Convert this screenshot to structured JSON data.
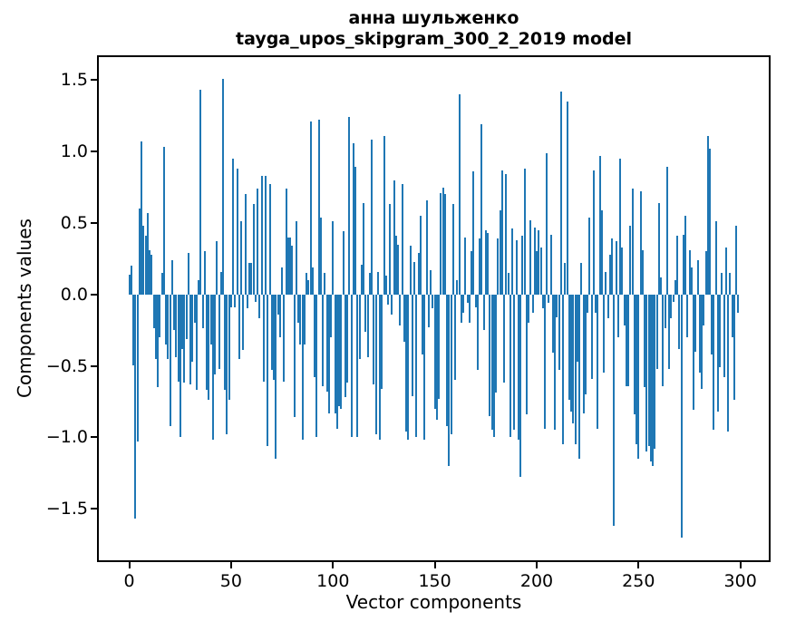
{
  "figure": {
    "background": "#ffffff"
  },
  "chart_data": {
    "type": "bar",
    "title": "анна шульженко",
    "subtitle": "tayga_upos_skipgram_300_2_2019 model",
    "xlabel": "Vector components",
    "ylabel": "Components values",
    "bar_color": "#1f77b4",
    "axis_color": "#000000",
    "grid": false,
    "legend_position": "none",
    "n_components": 300,
    "x_ticks": [
      0,
      50,
      100,
      150,
      200,
      250,
      300
    ],
    "x_tick_labels": [
      "0",
      "50",
      "100",
      "150",
      "200",
      "250",
      "300"
    ],
    "y_ticks": [
      1.5,
      1.0,
      0.5,
      0.0,
      -0.5,
      -1.0,
      -1.5
    ],
    "y_tick_labels": [
      "1.5",
      "1.0",
      "0.5",
      "0.0",
      "−0.5",
      "−1.0",
      "−1.5"
    ],
    "xlim": [
      -14.95,
      313.95
    ],
    "ylim": [
      -1.86,
      1.66
    ],
    "bar_width_data_units": 0.8,
    "values": [
      0.14,
      0.2,
      -0.5,
      -1.57,
      -1.03,
      0.6,
      1.07,
      0.48,
      0.41,
      0.57,
      0.31,
      0.28,
      -0.24,
      -0.45,
      -0.65,
      -0.3,
      0.15,
      1.03,
      -0.35,
      -0.45,
      -0.92,
      0.24,
      -0.25,
      -0.44,
      -0.61,
      -1.0,
      -0.38,
      -0.62,
      -0.31,
      0.29,
      -0.63,
      -0.47,
      -0.2,
      -0.67,
      0.1,
      1.43,
      -0.24,
      0.3,
      -0.67,
      -0.74,
      -0.35,
      -1.02,
      -0.56,
      0.37,
      -0.52,
      0.16,
      1.51,
      -0.67,
      -0.98,
      -0.74,
      -0.09,
      0.95,
      -0.09,
      0.88,
      -0.45,
      0.51,
      -0.39,
      0.7,
      -0.1,
      0.22,
      0.22,
      0.63,
      -0.05,
      0.74,
      -0.17,
      0.83,
      -0.61,
      0.83,
      -1.06,
      0.77,
      -0.53,
      -0.6,
      -1.15,
      -0.14,
      -0.3,
      0.19,
      -0.61,
      0.74,
      0.4,
      0.4,
      0.34,
      -0.86,
      0.51,
      -0.2,
      -0.35,
      -1.02,
      -0.35,
      0.15,
      0.1,
      1.21,
      0.19,
      -0.58,
      -1.0,
      1.22,
      0.54,
      -0.64,
      0.15,
      -0.68,
      -0.83,
      -0.3,
      0.51,
      -0.83,
      -0.94,
      -0.78,
      -0.8,
      0.44,
      -0.72,
      -0.62,
      1.24,
      -1.0,
      1.06,
      0.89,
      -1.0,
      -0.45,
      0.21,
      0.64,
      -0.26,
      -0.44,
      0.15,
      1.08,
      -0.63,
      -0.98,
      0.16,
      -1.02,
      -0.66,
      1.11,
      0.13,
      -0.07,
      0.63,
      -0.14,
      0.8,
      0.41,
      0.35,
      -0.22,
      0.77,
      -0.33,
      -0.96,
      -1.02,
      0.34,
      -0.71,
      0.23,
      -1.0,
      0.29,
      0.55,
      -0.42,
      -1.02,
      0.66,
      -0.23,
      0.17,
      -0.1,
      -0.8,
      -0.88,
      -0.73,
      0.71,
      0.75,
      0.7,
      -0.92,
      -1.2,
      -0.98,
      0.63,
      -0.6,
      0.1,
      1.4,
      -0.2,
      -0.13,
      0.4,
      -0.06,
      -0.2,
      0.3,
      0.86,
      -0.09,
      -0.53,
      0.39,
      1.19,
      -0.25,
      0.45,
      0.43,
      -0.85,
      -0.95,
      -1.0,
      -0.69,
      0.39,
      0.59,
      0.87,
      -0.62,
      0.84,
      0.15,
      -1.0,
      0.46,
      -0.95,
      0.38,
      -1.02,
      -1.28,
      0.41,
      0.88,
      -0.84,
      -0.2,
      0.52,
      -0.13,
      0.47,
      0.3,
      0.45,
      0.33,
      -0.1,
      -0.94,
      0.99,
      -0.06,
      0.42,
      -0.41,
      -0.95,
      -0.16,
      -0.53,
      1.42,
      -1.05,
      0.22,
      1.35,
      -0.74,
      -0.82,
      -0.9,
      -1.05,
      -0.47,
      -1.15,
      0.22,
      -0.83,
      -0.7,
      -0.13,
      0.54,
      -0.59,
      0.87,
      -0.13,
      -0.94,
      0.97,
      0.59,
      -0.55,
      0.16,
      -0.17,
      0.28,
      0.39,
      -1.62,
      0.37,
      -0.3,
      0.95,
      0.33,
      -0.22,
      -0.64,
      -0.64,
      0.48,
      0.74,
      -0.84,
      -1.05,
      -1.15,
      0.72,
      0.31,
      -0.65,
      -1.1,
      -1.06,
      -1.17,
      -1.2,
      -1.08,
      -0.52,
      0.64,
      0.12,
      -0.64,
      -0.24,
      0.89,
      -0.52,
      -0.17,
      -0.05,
      0.1,
      0.41,
      -0.38,
      -1.7,
      0.42,
      0.55,
      -0.3,
      0.31,
      0.19,
      -0.81,
      -0.4,
      0.24,
      -0.55,
      -0.66,
      -0.22,
      0.3,
      1.11,
      1.02,
      -0.42,
      -0.95,
      0.51,
      -0.82,
      -0.51,
      0.15,
      -0.58,
      0.33,
      -0.96,
      0.15,
      -0.3,
      -0.74,
      0.48,
      -0.13
    ]
  }
}
